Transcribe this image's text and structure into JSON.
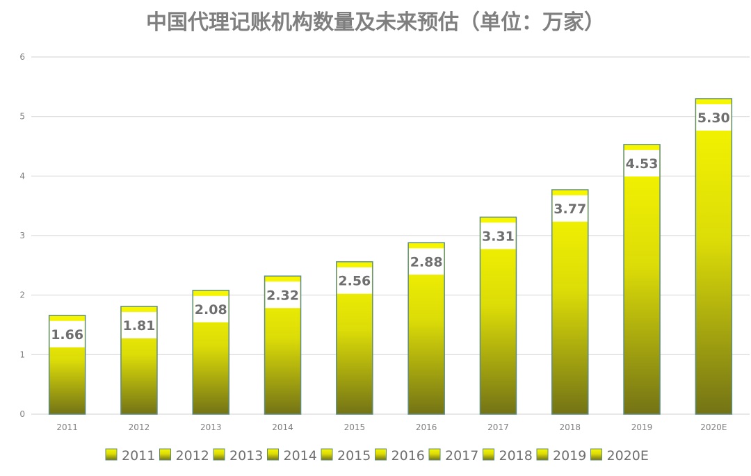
{
  "chart_data": {
    "type": "bar",
    "title": "中国代理记账机构数量及未来预估（单位：万家）",
    "categories": [
      "2011",
      "2012",
      "2013",
      "2014",
      "2015",
      "2016",
      "2017",
      "2018",
      "2019",
      "2020E"
    ],
    "values": [
      1.66,
      1.81,
      2.08,
      2.32,
      2.56,
      2.88,
      3.31,
      3.77,
      4.53,
      5.3
    ],
    "data_labels": [
      "1.66",
      "1.81",
      "2.08",
      "2.32",
      "2.56",
      "2.88",
      "3.31",
      "3.77",
      "4.53",
      "5.30"
    ],
    "xlabel": "",
    "ylabel": "",
    "ylim": [
      0,
      6
    ],
    "yticks": [
      "0",
      "1",
      "2",
      "3",
      "4",
      "5",
      "6"
    ],
    "grid": true,
    "legend": {
      "placement": "bottom",
      "entries": [
        "2011",
        "2012",
        "2013",
        "2014",
        "2015",
        "2016",
        "2017",
        "2018",
        "2019",
        "2020E"
      ]
    },
    "colors": {
      "bar_top": "#f7f700",
      "bar_bottom": "#737316",
      "bar_border": "#5f8c80",
      "grid": "#d9d9d9",
      "text": "#7f7f7f"
    }
  }
}
